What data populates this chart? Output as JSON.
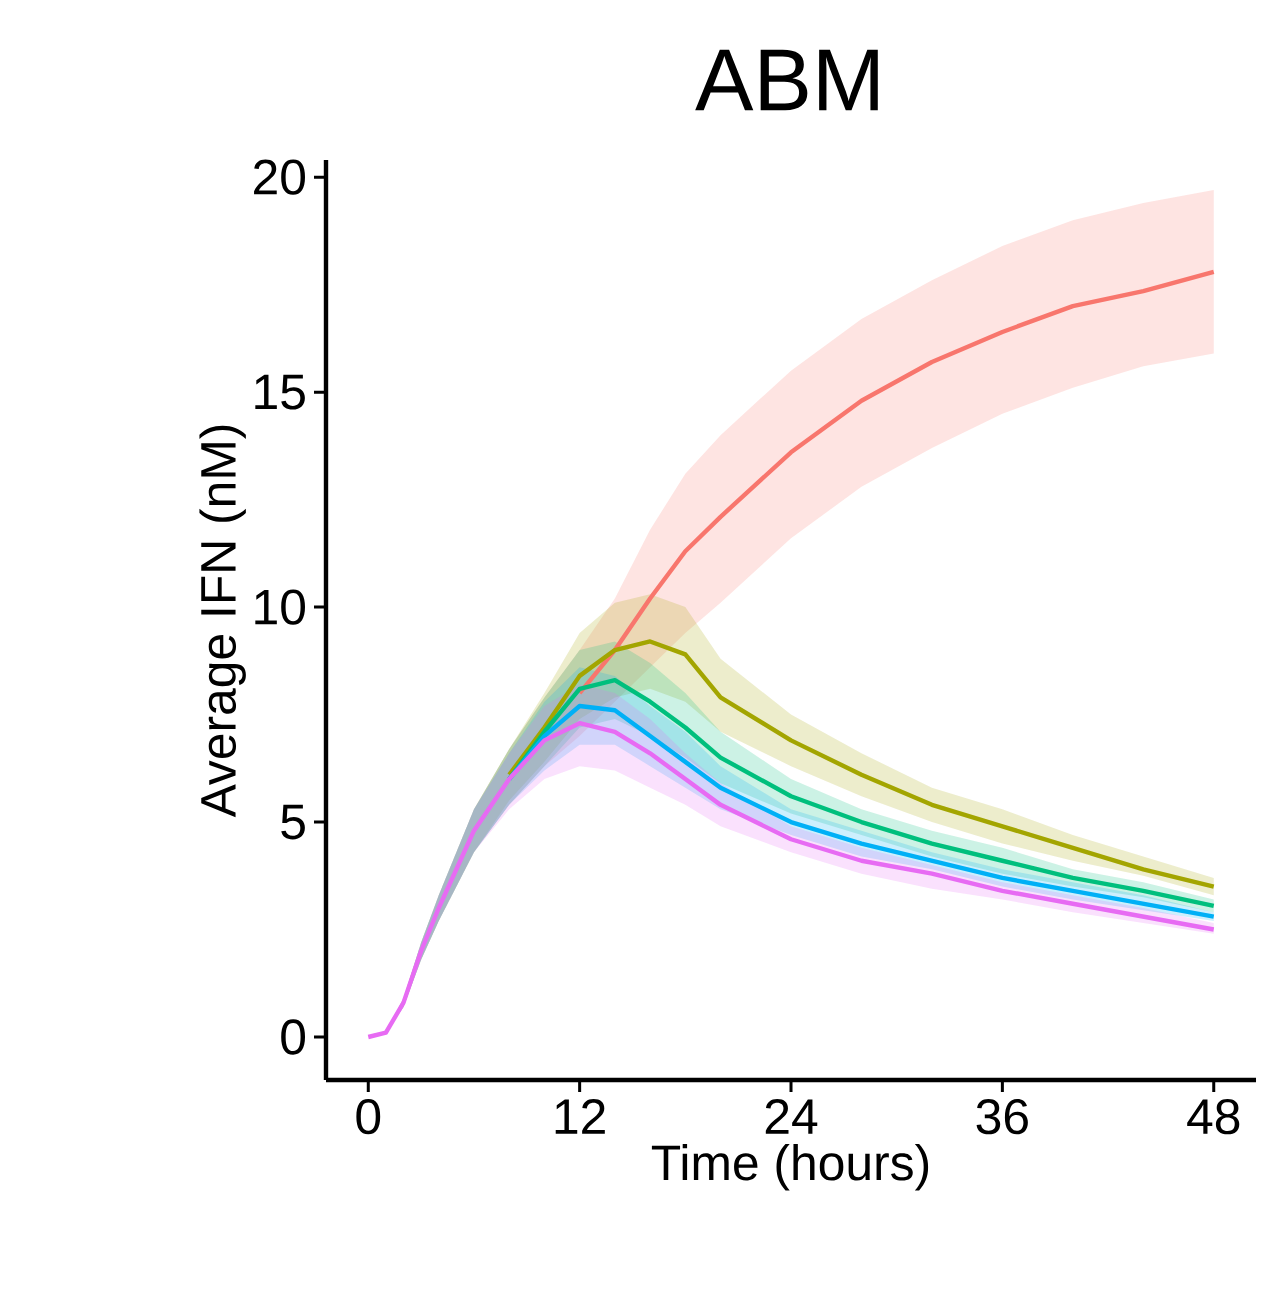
{
  "chart_data": {
    "type": "line",
    "title": "ABM",
    "xlabel": "Time (hours)",
    "ylabel": "Average IFN (nM)",
    "xlim": [
      -2.4,
      50.4
    ],
    "ylim": [
      -1,
      20.4
    ],
    "xticks": [
      0,
      12,
      24,
      36,
      48
    ],
    "yticks": [
      0,
      5,
      10,
      15,
      20
    ],
    "grid": false,
    "marker": "none",
    "line_style": "solid",
    "x": [
      0,
      1,
      2,
      3,
      4,
      6,
      8,
      10,
      12,
      14,
      16,
      18,
      20,
      24,
      28,
      32,
      36,
      40,
      44,
      48
    ],
    "series": [
      {
        "color": "#F8766D",
        "values": [
          null,
          null,
          null,
          null,
          null,
          null,
          null,
          null,
          8.0,
          9.0,
          10.2,
          11.3,
          12.1,
          13.6,
          14.8,
          15.7,
          16.4,
          17.0,
          17.35,
          17.8
        ],
        "lower": [
          0,
          0.1,
          0.7,
          1.8,
          2.7,
          4.3,
          5.4,
          6.3,
          7.0,
          7.8,
          8.6,
          9.4,
          10.1,
          11.6,
          12.8,
          13.7,
          14.5,
          15.1,
          15.6,
          15.9
        ],
        "upper": [
          0,
          0.1,
          0.9,
          2.2,
          3.3,
          5.3,
          6.7,
          7.9,
          9.0,
          10.2,
          11.8,
          13.1,
          14.0,
          15.5,
          16.7,
          17.6,
          18.4,
          19.0,
          19.4,
          19.7
        ]
      },
      {
        "color": "#A3A500",
        "values": [
          null,
          null,
          null,
          null,
          null,
          null,
          6.1,
          7.2,
          8.4,
          9.0,
          9.2,
          8.9,
          7.9,
          6.9,
          6.1,
          5.4,
          4.9,
          4.4,
          3.9,
          3.5
        ],
        "lower": [
          0,
          0.1,
          0.7,
          1.8,
          2.7,
          4.3,
          5.5,
          6.4,
          7.4,
          7.9,
          8.1,
          7.8,
          7.1,
          6.3,
          5.6,
          5.0,
          4.5,
          4.1,
          3.75,
          3.3
        ],
        "upper": [
          0,
          0.1,
          0.9,
          2.2,
          3.3,
          5.3,
          6.7,
          8.0,
          9.4,
          10.1,
          10.3,
          10.0,
          8.8,
          7.5,
          6.6,
          5.8,
          5.3,
          4.7,
          4.2,
          3.7
        ]
      },
      {
        "color": "#00BF7D",
        "values": [
          null,
          null,
          null,
          null,
          null,
          null,
          6.0,
          7.1,
          8.1,
          8.3,
          7.8,
          7.2,
          6.5,
          5.6,
          5.0,
          4.5,
          4.1,
          3.7,
          3.4,
          3.05
        ],
        "lower": [
          0,
          0.1,
          0.7,
          1.8,
          2.7,
          4.3,
          5.4,
          6.3,
          7.2,
          7.4,
          7.0,
          6.5,
          5.9,
          5.2,
          4.7,
          4.2,
          3.8,
          3.5,
          3.25,
          2.9
        ],
        "upper": [
          0,
          0.1,
          0.9,
          2.2,
          3.3,
          5.3,
          6.7,
          7.9,
          9.0,
          9.2,
          8.7,
          8.0,
          7.1,
          6.0,
          5.3,
          4.8,
          4.4,
          3.9,
          3.6,
          3.2
        ]
      },
      {
        "color": "#00B0F6",
        "values": [
          null,
          null,
          null,
          null,
          null,
          null,
          6.0,
          7.0,
          7.7,
          7.6,
          7.0,
          6.4,
          5.8,
          5.0,
          4.5,
          4.1,
          3.7,
          3.4,
          3.1,
          2.8
        ],
        "lower": [
          0,
          0.1,
          0.7,
          1.8,
          2.7,
          4.3,
          5.4,
          6.2,
          6.8,
          6.8,
          6.3,
          5.8,
          5.3,
          4.7,
          4.2,
          3.9,
          3.5,
          3.2,
          2.95,
          2.7
        ],
        "upper": [
          0,
          0.1,
          0.9,
          2.2,
          3.3,
          5.3,
          6.6,
          7.8,
          8.6,
          8.4,
          7.7,
          7.1,
          6.3,
          5.3,
          4.8,
          4.3,
          3.9,
          3.6,
          3.3,
          2.9
        ]
      },
      {
        "color": "#E76BF3",
        "values": [
          0,
          0.1,
          0.8,
          2.0,
          3.0,
          4.8,
          6.0,
          6.9,
          7.3,
          7.1,
          6.6,
          6.0,
          5.4,
          4.6,
          4.1,
          3.8,
          3.4,
          3.1,
          2.8,
          2.5
        ],
        "lower": [
          0,
          0.1,
          0.7,
          1.8,
          2.7,
          4.3,
          5.3,
          6.0,
          6.3,
          6.2,
          5.8,
          5.4,
          4.9,
          4.3,
          3.8,
          3.45,
          3.2,
          2.9,
          2.65,
          2.4
        ],
        "upper": [
          0,
          0.1,
          0.9,
          2.2,
          3.3,
          5.3,
          6.6,
          7.7,
          8.2,
          8.0,
          7.4,
          6.6,
          5.9,
          4.9,
          4.4,
          4.0,
          3.6,
          3.3,
          3.0,
          2.65
        ]
      }
    ]
  }
}
